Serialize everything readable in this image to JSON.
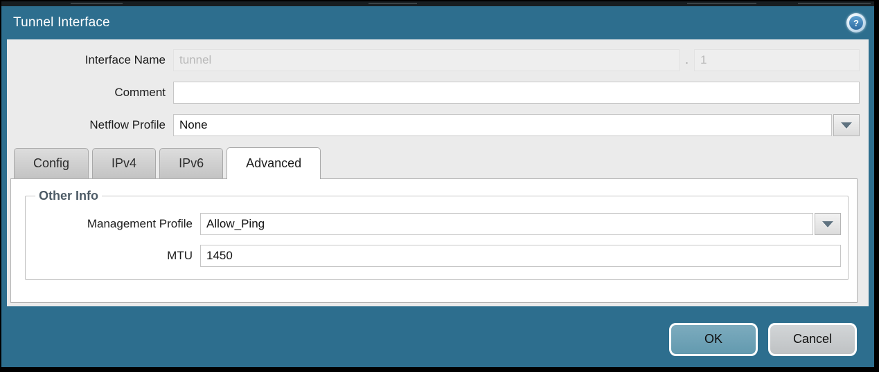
{
  "dialog": {
    "title": "Tunnel Interface",
    "help_glyph": "?"
  },
  "form": {
    "interface_name": {
      "label": "Interface Name",
      "base_value": "tunnel",
      "separator": ".",
      "suffix_value": "1"
    },
    "comment": {
      "label": "Comment",
      "value": ""
    },
    "netflow_profile": {
      "label": "Netflow Profile",
      "value": "None"
    }
  },
  "tabs": [
    {
      "label": "Config",
      "active": false
    },
    {
      "label": "IPv4",
      "active": false
    },
    {
      "label": "IPv6",
      "active": false
    },
    {
      "label": "Advanced",
      "active": true
    }
  ],
  "advanced_tab": {
    "section_title": "Other Info",
    "management_profile": {
      "label": "Management Profile",
      "value": "Allow_Ping"
    },
    "mtu": {
      "label": "MTU",
      "value": "1450"
    }
  },
  "footer": {
    "ok_label": "OK",
    "cancel_label": "Cancel"
  },
  "colors": {
    "frame_teal": "#2d6e8e",
    "ok_button": "#6fa3b8",
    "cancel_button": "#c8cbcd",
    "section_title_text": "#4d5b66"
  }
}
